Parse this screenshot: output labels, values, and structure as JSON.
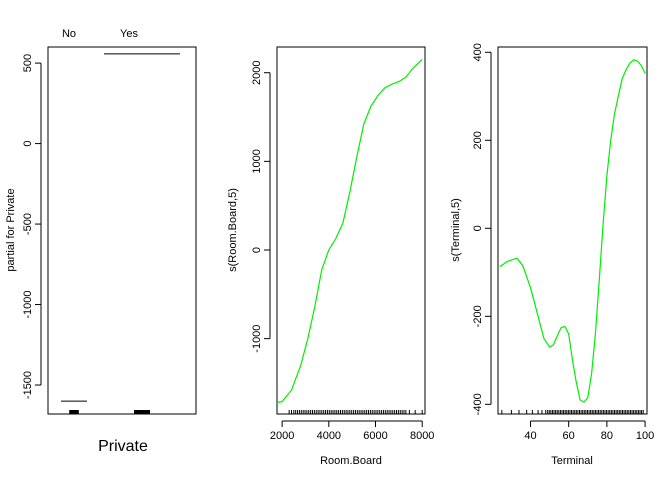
{
  "chart_data": [
    {
      "type": "bar",
      "panel": "private",
      "categories": [
        "No",
        "Yes"
      ],
      "values": [
        -1600,
        557
      ],
      "ylim": [
        -1680,
        600
      ],
      "yticks": [
        -1500,
        -1000,
        -500,
        0,
        500
      ],
      "ylabel": "partial for Private",
      "xlabel": "Private",
      "line_color": "#000000",
      "rug": [
        {
          "category": "No",
          "from": -0.12,
          "to": 0.12
        },
        {
          "category": "Yes",
          "from": -0.2,
          "to": 0.2
        }
      ]
    },
    {
      "type": "line",
      "panel": "room-board",
      "xlabel": "Room.Board",
      "ylabel": "s(Room.Board,5)",
      "xlim": [
        1780,
        8120
      ],
      "ylim": [
        -1850,
        2290
      ],
      "xticks": [
        2000,
        4000,
        6000,
        8000
      ],
      "yticks": [
        -1000,
        0,
        1000,
        2000
      ],
      "color": "#00ee00",
      "x": [
        1780,
        2000,
        2400,
        2800,
        3100,
        3400,
        3700,
        4000,
        4300,
        4600,
        4900,
        5200,
        5500,
        5800,
        6100,
        6400,
        6700,
        7000,
        7300,
        7600,
        8000
      ],
      "y": [
        -1720,
        -1710,
        -1580,
        -1300,
        -1000,
        -640,
        -220,
        0,
        130,
        300,
        650,
        1050,
        1420,
        1620,
        1740,
        1830,
        1870,
        1900,
        1950,
        2050,
        2150
      ],
      "rug_ranges": [
        [
          2500,
          7300
        ]
      ],
      "rug_points": [
        2300,
        2400,
        7450,
        7700,
        8000
      ]
    },
    {
      "type": "line",
      "panel": "terminal",
      "xlabel": "Terminal",
      "ylabel": "s(Terminal,5)",
      "xlim": [
        23,
        101
      ],
      "ylim": [
        -422,
        412
      ],
      "xticks": [
        40,
        60,
        80,
        100
      ],
      "yticks": [
        -400,
        -200,
        0,
        200,
        400
      ],
      "color": "#00ee00",
      "x": [
        24,
        28,
        33,
        36,
        40,
        44,
        47,
        50,
        52,
        54,
        56,
        58,
        60,
        62,
        64,
        66,
        68,
        70,
        72,
        74,
        76,
        78,
        80,
        82,
        84,
        86,
        88,
        90,
        92,
        94,
        96,
        98,
        100
      ],
      "y": [
        -87,
        -75,
        -68,
        -85,
        -135,
        -200,
        -250,
        -270,
        -265,
        -245,
        -226,
        -223,
        -240,
        -300,
        -350,
        -390,
        -395,
        -385,
        -330,
        -240,
        -120,
        10,
        120,
        200,
        260,
        300,
        340,
        360,
        375,
        383,
        380,
        370,
        352
      ],
      "rug_ranges": [
        [
          49,
          99
        ]
      ],
      "rug_points": [
        25,
        30,
        34,
        38,
        41,
        44,
        46,
        48
      ]
    }
  ]
}
